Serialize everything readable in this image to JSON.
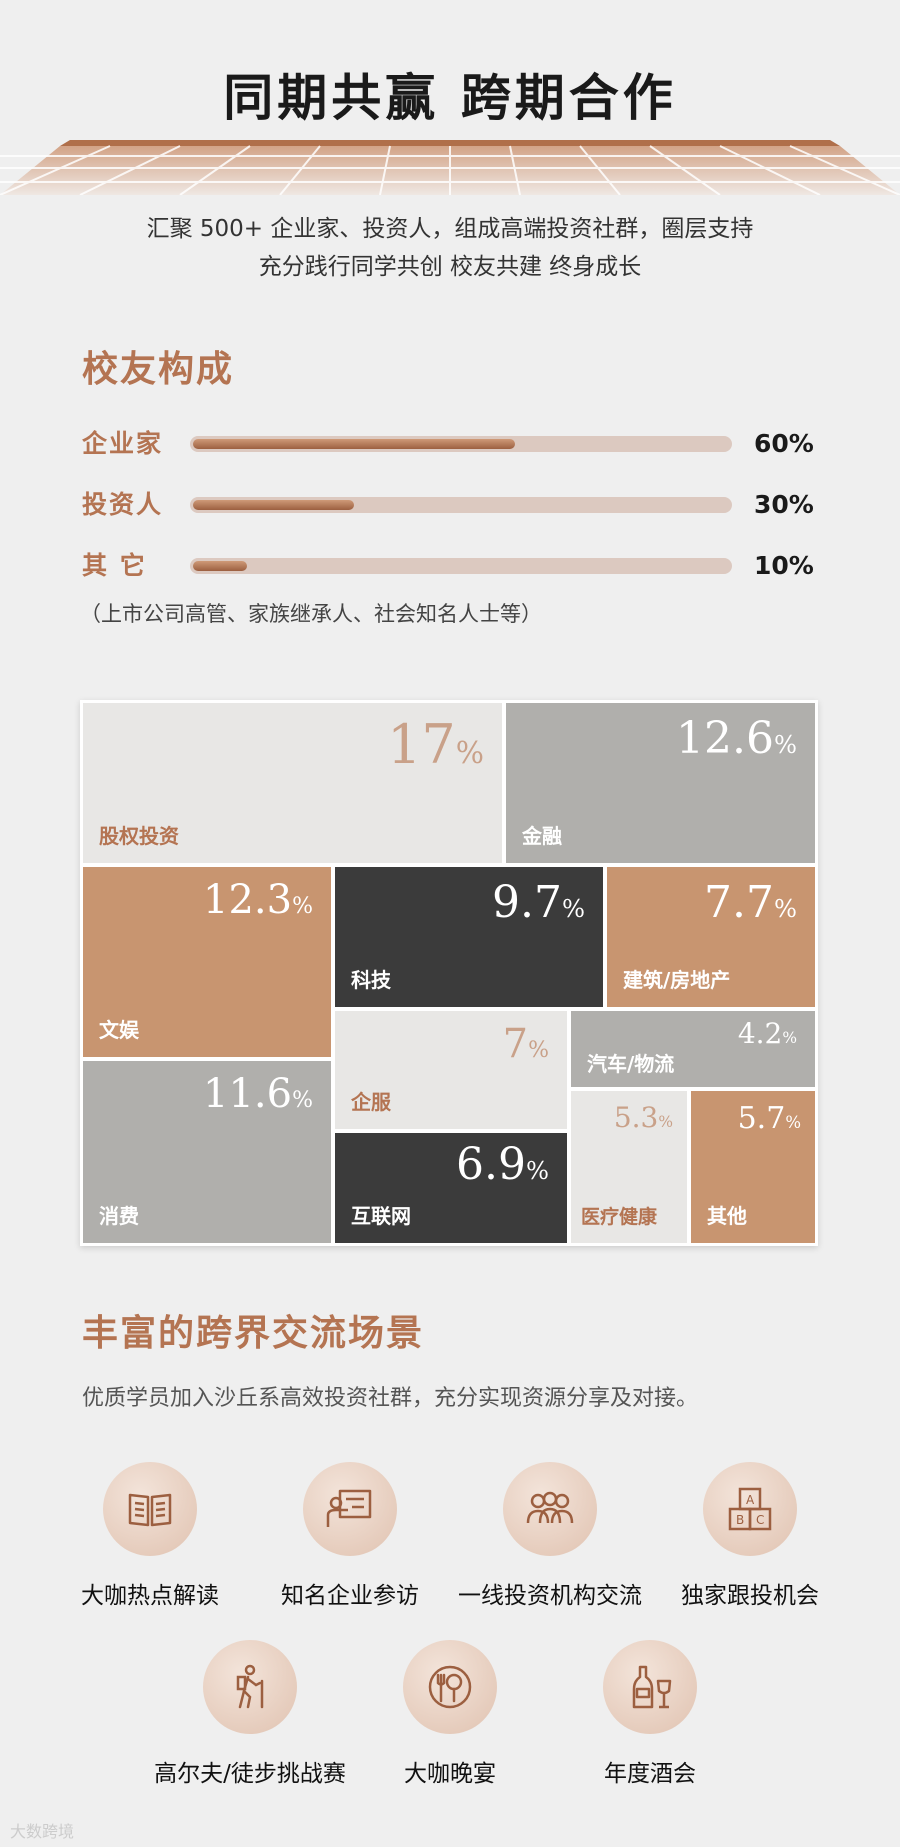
{
  "header": {
    "title": "同期共赢 跨期合作",
    "intro_line1": "汇聚 500+ 企业家、投资人，组成高端投资社群，圈层支持",
    "intro_line2": "充分践行同学共创 校友共建 终身成长"
  },
  "composition": {
    "title": "校友构成",
    "bars": [
      {
        "label": "企业家",
        "value": 60,
        "pct_text": "60%"
      },
      {
        "label": "投资人",
        "value": 30,
        "pct_text": "30%"
      },
      {
        "label": "其 它",
        "value": 10,
        "pct_text": "10%"
      }
    ],
    "footnote": "（上市公司高管、家族继承人、社会知名人士等）"
  },
  "industries": {
    "items": [
      {
        "name": "股权投资",
        "value": "17",
        "unit": "%"
      },
      {
        "name": "金融",
        "value": "12.6",
        "unit": "%"
      },
      {
        "name": "文娱",
        "value": "12.3",
        "unit": "%"
      },
      {
        "name": "科技",
        "value": "9.7",
        "unit": "%"
      },
      {
        "name": "建筑/房地产",
        "value": "7.7",
        "unit": "%"
      },
      {
        "name": "消费",
        "value": "11.6",
        "unit": "%"
      },
      {
        "name": "企服",
        "value": "7",
        "unit": "%"
      },
      {
        "name": "汽车/物流",
        "value": "4.2",
        "unit": "%"
      },
      {
        "name": "互联网",
        "value": "6.9",
        "unit": "%"
      },
      {
        "name": "医疗健康",
        "value": "5.3",
        "unit": "%"
      },
      {
        "name": "其他",
        "value": "5.7",
        "unit": "%"
      }
    ]
  },
  "scenes": {
    "title": "丰富的跨界交流场景",
    "subtitle": "优质学员加入沙丘系高效投资社群，充分实现资源分享及对接。",
    "items": [
      {
        "label": "大咖热点解读",
        "icon": "book-icon"
      },
      {
        "label": "知名企业参访",
        "icon": "presentation-icon"
      },
      {
        "label": "一线投资机构交流",
        "icon": "people-group-icon"
      },
      {
        "label": "独家跟投机会",
        "icon": "abc-blocks-icon"
      },
      {
        "label": "高尔夫/徒步挑战赛",
        "icon": "hiker-icon"
      },
      {
        "label": "大咖晚宴",
        "icon": "dinner-plate-icon"
      },
      {
        "label": "年度酒会",
        "icon": "wine-bottle-icon"
      }
    ]
  },
  "watermark": "大数跨境",
  "colors": {
    "accent": "#b47452",
    "copper": "#c89570",
    "dark": "#3b3b3b",
    "gray": "#b0afac",
    "light": "#e8e7e5"
  }
}
